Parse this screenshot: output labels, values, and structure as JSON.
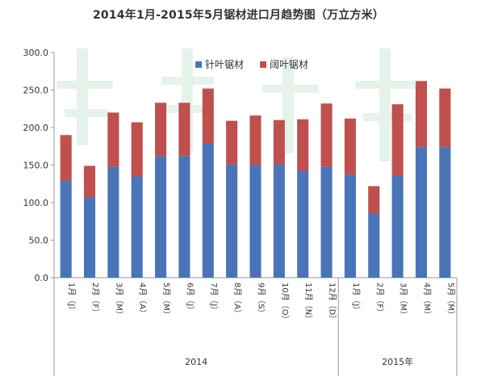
{
  "chart_data": {
    "type": "bar",
    "stacked": true,
    "title": "2014年1月-2015年5月锯材进口月趋势图（万立方米）",
    "categories": [
      "1月（J）",
      "2月（F）",
      "3月（M）",
      "4月（A）",
      "5月（M）",
      "6月（J）",
      "7月（J）",
      "8月（A）",
      "9月（S）",
      "10月（O）",
      "11月（N）",
      "12月（D）",
      "1月（J）",
      "2月（F）",
      "3月（M）",
      "4月（M）",
      "5月（M）"
    ],
    "groups": [
      {
        "label": "2014",
        "count": 12
      },
      {
        "label": "2015年",
        "count": 5
      }
    ],
    "series": [
      {
        "name": "针叶锯材",
        "color": "#4a74b8",
        "values": [
          129,
          107,
          148,
          135,
          162,
          162,
          179,
          151,
          150,
          151,
          142,
          148,
          137,
          86,
          136,
          174,
          174
        ]
      },
      {
        "name": "阔叶锯材",
        "color": "#c0504d",
        "values": [
          61,
          42,
          72,
          72,
          71,
          71,
          73,
          58,
          66,
          59,
          69,
          84,
          75,
          36,
          95,
          88,
          78
        ]
      }
    ],
    "ylim": [
      0,
      300
    ],
    "yticks": [
      "0.0",
      "50.0",
      "100.0",
      "150.0",
      "200.0",
      "250.0",
      "300.0"
    ],
    "legend_position": "top-right",
    "grid": false
  }
}
